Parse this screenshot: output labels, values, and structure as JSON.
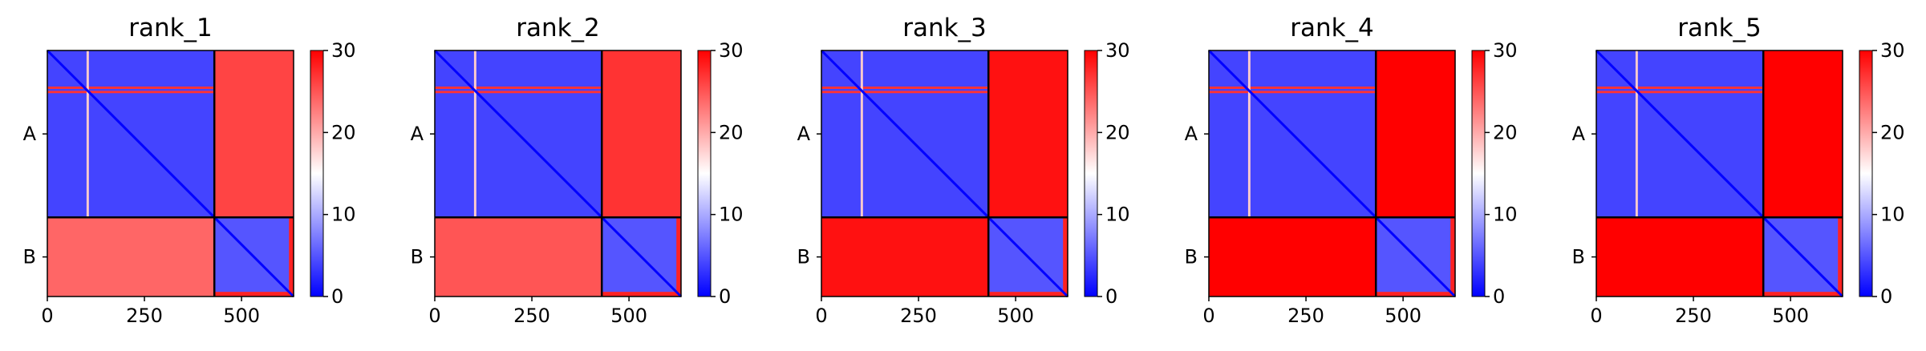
{
  "chart_data": {
    "type": "heatmap",
    "figure_title": "",
    "colormap": {
      "name": "bwr",
      "low_color": "#0000ff",
      "mid_color": "#ffffff",
      "high_color": "#ff0000",
      "vmin": 0,
      "vmax": 30
    },
    "shared": {
      "chains": [
        {
          "label": "A",
          "start": 0,
          "end": 430
        },
        {
          "label": "B",
          "start": 430,
          "end": 634
        }
      ],
      "total_length": 634,
      "x_ticks": [
        "0",
        "250",
        "500"
      ],
      "x_tick_values": [
        0,
        250,
        500
      ],
      "colorbar_ticks": [
        "0",
        "10",
        "20",
        "30"
      ],
      "colorbar_tick_values": [
        0,
        10,
        20,
        30
      ]
    },
    "panels": [
      {
        "title": "rank_1",
        "intra_A": 4,
        "intra_B": 5,
        "inter_AB": 26,
        "inter_BA": 24,
        "stripe_rows": [
          96,
          107
        ],
        "stripe_cols": [
          104
        ],
        "band": 3
      },
      {
        "title": "rank_2",
        "intra_A": 4,
        "intra_B": 5,
        "inter_AB": 27,
        "inter_BA": 25,
        "stripe_rows": [
          96,
          107
        ],
        "stripe_cols": [
          104
        ],
        "band": 3
      },
      {
        "title": "rank_3",
        "intra_A": 4,
        "intra_B": 5,
        "inter_AB": 29,
        "inter_BA": 29,
        "stripe_rows": [
          96,
          107
        ],
        "stripe_cols": [
          104
        ],
        "band": 3
      },
      {
        "title": "rank_4",
        "intra_A": 4,
        "intra_B": 5,
        "inter_AB": 30,
        "inter_BA": 30,
        "stripe_rows": [
          96,
          107
        ],
        "stripe_cols": [
          104
        ],
        "band": 3
      },
      {
        "title": "rank_5",
        "intra_A": 4,
        "intra_B": 5,
        "inter_AB": 30,
        "inter_BA": 30,
        "stripe_rows": [
          96,
          107
        ],
        "stripe_cols": [
          104
        ],
        "band": 3
      }
    ]
  }
}
